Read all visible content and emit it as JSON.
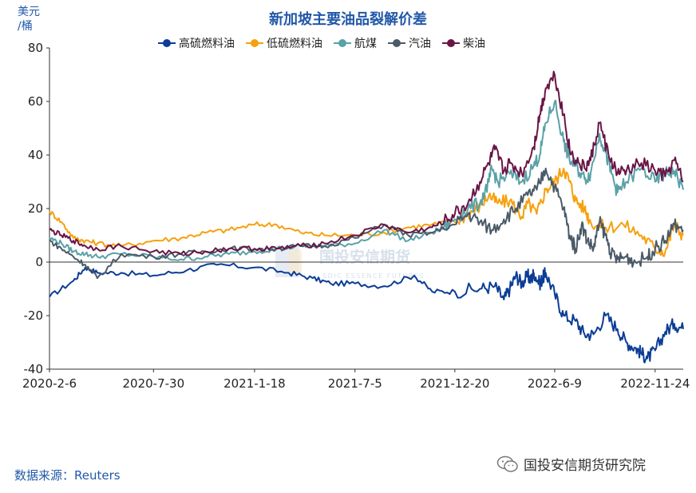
{
  "chart_data": {
    "type": "line",
    "title": "新加坡主要油品裂解价差",
    "yunit_line1": "美元",
    "yunit_line2": "/桶",
    "ylim": [
      -40,
      80
    ],
    "yticks": [
      -40,
      -20,
      0,
      20,
      40,
      60,
      80
    ],
    "x_tick_labels": [
      "2020-2-6",
      "2020-7-30",
      "2021-1-18",
      "2021-7-5",
      "2021-12-20",
      "2022-6-9",
      "2022-11-24"
    ],
    "x_tick_index": [
      0,
      174,
      343,
      511,
      678,
      845,
      1013
    ],
    "x_total": 1060,
    "series": [
      {
        "name": "高硫燃料油",
        "color": "#0c3d96",
        "x": [
          0,
          40,
          60,
          80,
          120,
          174,
          230,
          280,
          343,
          400,
          440,
          470,
          511,
          560,
          610,
          640,
          678,
          720,
          745,
          760,
          770,
          780,
          790,
          800,
          805,
          810,
          820,
          825,
          830,
          845,
          860,
          880,
          895,
          910,
          930,
          950,
          965,
          980,
          990,
          1000,
          1013,
          1030,
          1045,
          1060
        ],
        "y": [
          -13,
          -7,
          -2,
          -4,
          -4,
          -5,
          -3,
          -1,
          -2,
          -4,
          -6,
          -8,
          -8,
          -9,
          -5,
          -11,
          -11,
          -10,
          -9,
          -14,
          -10,
          -5,
          -8,
          -5,
          -7,
          -4,
          -8,
          -6,
          -4,
          -12,
          -20,
          -22,
          -27,
          -27,
          -20,
          -25,
          -30,
          -32,
          -34,
          -36,
          -33,
          -26,
          -23,
          -25
        ]
      },
      {
        "name": "低硫燃料油",
        "color": "#f5a10e",
        "x": [
          0,
          20,
          40,
          60,
          80,
          120,
          174,
          220,
          260,
          300,
          343,
          380,
          420,
          460,
          511,
          560,
          600,
          640,
          678,
          700,
          720,
          735,
          750,
          770,
          790,
          800,
          815,
          830,
          845,
          860,
          870,
          880,
          895,
          905,
          930,
          960,
          990,
          1013,
          1030,
          1045,
          1060
        ],
        "y": [
          19,
          15,
          9,
          8,
          7,
          6,
          8,
          9,
          11,
          12,
          14,
          14,
          11,
          10,
          10,
          11,
          13,
          14,
          15,
          18,
          21,
          25,
          22,
          23,
          17,
          22,
          18,
          27,
          30,
          35,
          30,
          23,
          20,
          15,
          13,
          14,
          10,
          5,
          4,
          14,
          10
        ]
      },
      {
        "name": "航煤",
        "color": "#5aa1a8",
        "x": [
          0,
          20,
          40,
          60,
          80,
          120,
          174,
          220,
          260,
          300,
          343,
          380,
          420,
          460,
          511,
          560,
          600,
          640,
          660,
          678,
          700,
          720,
          735,
          740,
          750,
          770,
          790,
          810,
          820,
          830,
          845,
          860,
          870,
          880,
          895,
          905,
          920,
          930,
          940,
          950,
          965,
          990,
          1013,
          1030,
          1045,
          1060
        ],
        "y": [
          9,
          7,
          4,
          3,
          2,
          3,
          2,
          1,
          2,
          3,
          4,
          5,
          6,
          6,
          7,
          12,
          8,
          11,
          13,
          16,
          20,
          22,
          30,
          35,
          30,
          33,
          30,
          36,
          40,
          52,
          60,
          45,
          38,
          36,
          31,
          33,
          48,
          41,
          33,
          26,
          30,
          35,
          30,
          33,
          34,
          27
        ]
      },
      {
        "name": "汽油",
        "color": "#4a5a68",
        "x": [
          0,
          20,
          40,
          60,
          80,
          120,
          174,
          220,
          260,
          300,
          343,
          380,
          420,
          460,
          511,
          560,
          600,
          640,
          678,
          700,
          720,
          740,
          760,
          780,
          800,
          815,
          830,
          845,
          860,
          870,
          880,
          890,
          900,
          910,
          920,
          930,
          940,
          950,
          965,
          980,
          1000,
          1013,
          1030,
          1045,
          1060
        ],
        "y": [
          8,
          5,
          2,
          -1,
          -6,
          3,
          2,
          3,
          4,
          5,
          5,
          5,
          6,
          6,
          9,
          14,
          10,
          11,
          14,
          18,
          15,
          12,
          16,
          20,
          25,
          27,
          35,
          28,
          20,
          10,
          5,
          14,
          8,
          5,
          15,
          10,
          3,
          1,
          2,
          0,
          2,
          5,
          8,
          14,
          12
        ]
      },
      {
        "name": "柴油",
        "color": "#6a1546",
        "x": [
          0,
          20,
          40,
          60,
          80,
          120,
          174,
          220,
          260,
          300,
          343,
          380,
          420,
          460,
          511,
          560,
          600,
          640,
          660,
          678,
          700,
          720,
          735,
          745,
          760,
          770,
          790,
          810,
          820,
          830,
          845,
          860,
          870,
          880,
          895,
          905,
          920,
          935,
          950,
          965,
          990,
          1013,
          1030,
          1045,
          1060
        ],
        "y": [
          12,
          10,
          8,
          6,
          5,
          6,
          4,
          3,
          4,
          5,
          5,
          5,
          6,
          7,
          10,
          14,
          11,
          13,
          15,
          18,
          22,
          30,
          37,
          42,
          34,
          37,
          33,
          43,
          55,
          65,
          70,
          55,
          42,
          38,
          35,
          38,
          52,
          40,
          33,
          34,
          37,
          34,
          32,
          38,
          30
        ]
      }
    ],
    "legend_position": "top",
    "grid": false
  },
  "source": "数据来源：Reuters",
  "watermark_center_cn": "国投安信期货",
  "watermark_center_en": "SDIC ESSENCE FUTURES",
  "watermark_right": "国投安信期货研究院"
}
